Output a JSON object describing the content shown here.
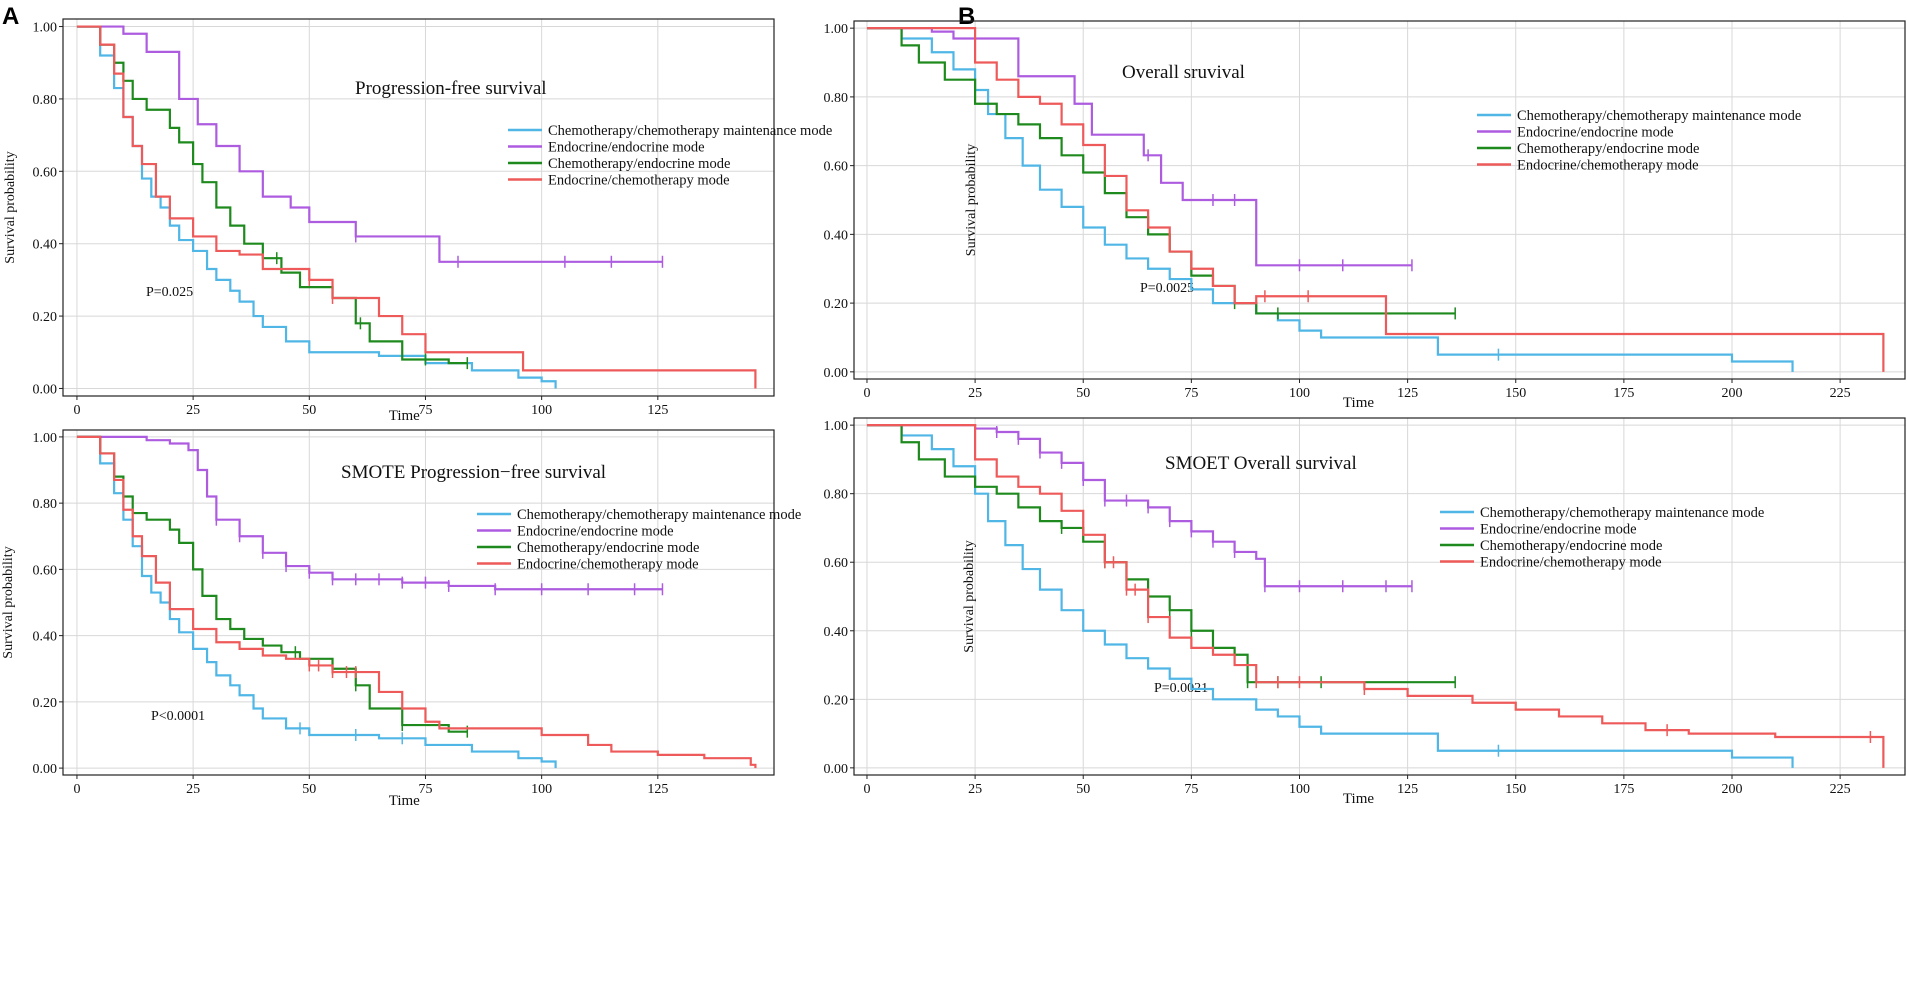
{
  "panel_letters": [
    "A",
    "B"
  ],
  "legend_labels": [
    "Chemotherapy/chemotherapy maintenance mode",
    "Endocrine/endocrine  mode",
    "Chemotherapy/endocrine mode",
    "Endocrine/chemotherapy  mode"
  ],
  "series_colors": [
    "#4fb6e6",
    "#ad5ce0",
    "#1e8a1e",
    "#ee5a5a"
  ],
  "chart_data": [
    {
      "type": "line",
      "title": "Progression-free survival",
      "xlabel": "Time",
      "ylabel": "Survival probability",
      "xlim": [
        -3,
        150
      ],
      "ylim": [
        0,
        1
      ],
      "xticks": [
        0,
        25,
        50,
        75,
        100,
        125
      ],
      "yticks": [
        0.0,
        0.2,
        0.4,
        0.6,
        0.8,
        1.0
      ],
      "ytick_labels": [
        "0.00",
        "0.20",
        "0.40",
        "0.60",
        "0.80",
        "1.00"
      ],
      "annotation": "P=0.025",
      "grid": true,
      "legend_position": "upper-right",
      "series": [
        {
          "name": "Chemotherapy/chemotherapy maintenance mode",
          "x": [
            0,
            5,
            8,
            10,
            12,
            14,
            16,
            18,
            20,
            22,
            25,
            28,
            30,
            33,
            35,
            38,
            40,
            45,
            50,
            55,
            65,
            75,
            85,
            95,
            100,
            103
          ],
          "y": [
            1,
            0.92,
            0.83,
            0.75,
            0.67,
            0.58,
            0.53,
            0.5,
            0.45,
            0.41,
            0.38,
            0.33,
            0.3,
            0.27,
            0.24,
            0.2,
            0.17,
            0.13,
            0.1,
            0.1,
            0.09,
            0.07,
            0.05,
            0.03,
            0.02,
            0
          ]
        },
        {
          "name": "Endocrine/endocrine  mode",
          "x": [
            0,
            10,
            15,
            22,
            26,
            30,
            35,
            40,
            46,
            50,
            60,
            65,
            78,
            90,
            126
          ],
          "y": [
            1,
            0.98,
            0.93,
            0.8,
            0.73,
            0.67,
            0.6,
            0.53,
            0.5,
            0.46,
            0.42,
            0.42,
            0.35,
            0.35,
            0.35
          ],
          "censor_x": [
            60,
            82,
            105,
            115,
            126
          ]
        },
        {
          "name": "Chemotherapy/endocrine mode",
          "x": [
            0,
            5,
            8,
            10,
            12,
            15,
            20,
            22,
            25,
            27,
            30,
            33,
            36,
            40,
            44,
            48,
            55,
            60,
            63,
            70,
            80,
            84
          ],
          "y": [
            1,
            0.95,
            0.9,
            0.85,
            0.8,
            0.77,
            0.72,
            0.68,
            0.62,
            0.57,
            0.5,
            0.45,
            0.4,
            0.36,
            0.32,
            0.28,
            0.25,
            0.18,
            0.13,
            0.08,
            0.07,
            0.07
          ],
          "censor_x": [
            43,
            61,
            75,
            84
          ]
        },
        {
          "name": "Endocrine/chemotherapy  mode",
          "x": [
            0,
            5,
            8,
            10,
            12,
            14,
            17,
            20,
            25,
            30,
            35,
            40,
            45,
            50,
            55,
            65,
            70,
            75,
            78,
            96,
            146
          ],
          "y": [
            1,
            0.95,
            0.87,
            0.75,
            0.67,
            0.62,
            0.53,
            0.47,
            0.42,
            0.38,
            0.37,
            0.33,
            0.33,
            0.3,
            0.25,
            0.2,
            0.15,
            0.1,
            0.1,
            0.05,
            0
          ],
          "censor_x": [
            50,
            55
          ]
        }
      ]
    },
    {
      "type": "line",
      "title": "Overall sruvival",
      "xlabel": "Time",
      "ylabel": "Survival probability",
      "xlim": [
        -3,
        240
      ],
      "ylim": [
        0,
        1
      ],
      "xticks": [
        0,
        25,
        50,
        75,
        100,
        125,
        150,
        175,
        200,
        225
      ],
      "yticks": [
        0.0,
        0.2,
        0.4,
        0.6,
        0.8,
        1.0
      ],
      "ytick_labels": [
        "0.00",
        "0.20",
        "0.40",
        "0.60",
        "0.80",
        "1.00"
      ],
      "annotation": "P=0.0025",
      "grid": true,
      "legend_position": "upper-right",
      "series": [
        {
          "name": "Chemotherapy/chemotherapy maintenance mode",
          "x": [
            0,
            8,
            15,
            20,
            25,
            28,
            32,
            36,
            40,
            45,
            50,
            55,
            60,
            65,
            70,
            75,
            80,
            90,
            95,
            100,
            105,
            120,
            132,
            145,
            200,
            214
          ],
          "y": [
            1,
            0.97,
            0.93,
            0.88,
            0.82,
            0.75,
            0.68,
            0.6,
            0.53,
            0.48,
            0.42,
            0.37,
            0.33,
            0.3,
            0.27,
            0.24,
            0.2,
            0.17,
            0.15,
            0.12,
            0.1,
            0.1,
            0.05,
            0.05,
            0.03,
            0
          ],
          "censor_x": [
            146
          ]
        },
        {
          "name": "Endocrine/endocrine  mode",
          "x": [
            0,
            15,
            20,
            30,
            35,
            43,
            48,
            52,
            60,
            64,
            68,
            73,
            78,
            85,
            90,
            92,
            126
          ],
          "y": [
            1,
            0.99,
            0.97,
            0.97,
            0.86,
            0.86,
            0.78,
            0.69,
            0.69,
            0.63,
            0.55,
            0.5,
            0.5,
            0.5,
            0.31,
            0.31,
            0.31
          ],
          "censor_x": [
            65,
            80,
            85,
            100,
            110,
            126
          ]
        },
        {
          "name": "Chemotherapy/endocrine mode",
          "x": [
            0,
            8,
            12,
            18,
            25,
            30,
            35,
            40,
            45,
            50,
            55,
            60,
            65,
            70,
            75,
            80,
            85,
            90,
            136
          ],
          "y": [
            1,
            0.95,
            0.9,
            0.85,
            0.78,
            0.75,
            0.72,
            0.68,
            0.63,
            0.58,
            0.52,
            0.45,
            0.4,
            0.35,
            0.28,
            0.25,
            0.2,
            0.17,
            0.17
          ],
          "censor_x": [
            85,
            95,
            136
          ]
        },
        {
          "name": "Endocrine/chemotherapy  mode",
          "x": [
            0,
            20,
            25,
            30,
            35,
            40,
            45,
            50,
            55,
            60,
            65,
            70,
            75,
            80,
            85,
            90,
            100,
            110,
            120,
            125,
            130,
            235
          ],
          "y": [
            1,
            1,
            0.9,
            0.85,
            0.8,
            0.78,
            0.72,
            0.66,
            0.57,
            0.47,
            0.42,
            0.35,
            0.3,
            0.25,
            0.2,
            0.22,
            0.22,
            0.22,
            0.11,
            0.11,
            0.11,
            0
          ],
          "censor_x": [
            92,
            102
          ]
        }
      ]
    },
    {
      "type": "line",
      "title": "SMOTE Progression−free survival",
      "xlabel": "Time",
      "ylabel": "Survival probability",
      "xlim": [
        -3,
        150
      ],
      "ylim": [
        0,
        1
      ],
      "xticks": [
        0,
        25,
        50,
        75,
        100,
        125
      ],
      "yticks": [
        0.0,
        0.2,
        0.4,
        0.6,
        0.8,
        1.0
      ],
      "ytick_labels": [
        "0.00",
        "0.20",
        "0.40",
        "0.60",
        "0.80",
        "1.00"
      ],
      "annotation": "P<0.0001",
      "grid": true,
      "legend_position": "upper-right",
      "series": [
        {
          "name": "Chemotherapy/chemotherapy maintenance mode",
          "x": [
            0,
            5,
            8,
            10,
            12,
            14,
            16,
            18,
            20,
            22,
            25,
            28,
            30,
            33,
            35,
            38,
            40,
            45,
            50,
            55,
            65,
            75,
            85,
            95,
            100,
            103
          ],
          "y": [
            1,
            0.92,
            0.83,
            0.75,
            0.67,
            0.58,
            0.53,
            0.5,
            0.45,
            0.41,
            0.36,
            0.32,
            0.28,
            0.25,
            0.22,
            0.18,
            0.15,
            0.12,
            0.1,
            0.1,
            0.09,
            0.07,
            0.05,
            0.03,
            0.02,
            0
          ],
          "censor_x": [
            48,
            60,
            70
          ]
        },
        {
          "name": "Endocrine/endocrine  mode",
          "x": [
            0,
            10,
            15,
            20,
            24,
            26,
            28,
            30,
            35,
            40,
            45,
            50,
            55,
            60,
            70,
            80,
            90,
            126
          ],
          "y": [
            1,
            1,
            0.99,
            0.98,
            0.96,
            0.9,
            0.82,
            0.75,
            0.7,
            0.65,
            0.61,
            0.59,
            0.57,
            0.57,
            0.56,
            0.55,
            0.54,
            0.54
          ],
          "censor_x": [
            30,
            35,
            40,
            45,
            50,
            55,
            60,
            65,
            70,
            75,
            80,
            90,
            100,
            110,
            120,
            126
          ]
        },
        {
          "name": "Chemotherapy/endocrine mode",
          "x": [
            0,
            5,
            8,
            10,
            12,
            15,
            20,
            22,
            25,
            27,
            30,
            33,
            36,
            40,
            44,
            48,
            55,
            60,
            63,
            70,
            80,
            84
          ],
          "y": [
            1,
            0.95,
            0.88,
            0.82,
            0.77,
            0.75,
            0.72,
            0.68,
            0.6,
            0.52,
            0.45,
            0.42,
            0.39,
            0.37,
            0.35,
            0.33,
            0.3,
            0.25,
            0.18,
            0.13,
            0.11,
            0.11
          ],
          "censor_x": [
            47,
            55,
            60,
            70,
            84
          ]
        },
        {
          "name": "Endocrine/chemotherapy  mode",
          "x": [
            0,
            5,
            8,
            10,
            12,
            14,
            17,
            20,
            25,
            30,
            35,
            40,
            45,
            50,
            55,
            65,
            70,
            75,
            78,
            90,
            100,
            110,
            115,
            125,
            135,
            145,
            146
          ],
          "y": [
            1,
            0.95,
            0.87,
            0.78,
            0.7,
            0.64,
            0.56,
            0.48,
            0.42,
            0.38,
            0.36,
            0.34,
            0.33,
            0.31,
            0.29,
            0.23,
            0.18,
            0.14,
            0.12,
            0.12,
            0.1,
            0.07,
            0.05,
            0.04,
            0.03,
            0.01,
            0
          ],
          "censor_x": [
            50,
            52,
            55,
            58,
            60
          ]
        }
      ]
    },
    {
      "type": "line",
      "title": "SMOET Overall survival",
      "xlabel": "Time",
      "ylabel": "Survival probability",
      "xlim": [
        -3,
        240
      ],
      "ylim": [
        0,
        1
      ],
      "xticks": [
        0,
        25,
        50,
        75,
        100,
        125,
        150,
        175,
        200,
        225
      ],
      "yticks": [
        0.0,
        0.2,
        0.4,
        0.6,
        0.8,
        1.0
      ],
      "ytick_labels": [
        "0.00",
        "0.20",
        "0.40",
        "0.60",
        "0.80",
        "1.00"
      ],
      "annotation": "P=0.0021",
      "grid": true,
      "legend_position": "upper-right",
      "series": [
        {
          "name": "Chemotherapy/chemotherapy maintenance mode",
          "x": [
            0,
            8,
            15,
            20,
            25,
            28,
            32,
            36,
            40,
            45,
            50,
            55,
            60,
            65,
            70,
            75,
            80,
            90,
            95,
            100,
            105,
            120,
            132,
            145,
            200,
            214
          ],
          "y": [
            1,
            0.97,
            0.93,
            0.88,
            0.8,
            0.72,
            0.65,
            0.58,
            0.52,
            0.46,
            0.4,
            0.36,
            0.32,
            0.29,
            0.26,
            0.23,
            0.2,
            0.17,
            0.15,
            0.12,
            0.1,
            0.1,
            0.05,
            0.05,
            0.03,
            0
          ],
          "censor_x": [
            146
          ]
        },
        {
          "name": "Endocrine/endocrine  mode",
          "x": [
            0,
            15,
            25,
            30,
            35,
            40,
            45,
            50,
            55,
            60,
            65,
            70,
            75,
            80,
            85,
            90,
            92,
            126
          ],
          "y": [
            1,
            1,
            0.99,
            0.98,
            0.96,
            0.92,
            0.89,
            0.84,
            0.78,
            0.78,
            0.76,
            0.72,
            0.69,
            0.66,
            0.63,
            0.61,
            0.53,
            0.53
          ],
          "censor_x": [
            30,
            35,
            40,
            45,
            50,
            55,
            60,
            65,
            70,
            75,
            80,
            85,
            92,
            100,
            110,
            120,
            126
          ]
        },
        {
          "name": "Chemotherapy/endocrine mode",
          "x": [
            0,
            8,
            12,
            18,
            25,
            30,
            35,
            40,
            45,
            50,
            55,
            60,
            65,
            70,
            75,
            80,
            85,
            88,
            136
          ],
          "y": [
            1,
            0.95,
            0.9,
            0.85,
            0.82,
            0.8,
            0.76,
            0.72,
            0.7,
            0.66,
            0.6,
            0.55,
            0.5,
            0.46,
            0.4,
            0.35,
            0.33,
            0.25,
            0.25
          ],
          "censor_x": [
            45,
            55,
            60,
            65,
            70,
            75,
            80,
            88,
            95,
            105,
            136
          ]
        },
        {
          "name": "Endocrine/chemotherapy  mode",
          "x": [
            0,
            20,
            25,
            30,
            35,
            40,
            45,
            50,
            55,
            60,
            65,
            70,
            75,
            80,
            85,
            90,
            100,
            115,
            125,
            140,
            150,
            160,
            170,
            180,
            190,
            210,
            235
          ],
          "y": [
            1,
            1,
            0.9,
            0.85,
            0.82,
            0.8,
            0.75,
            0.68,
            0.6,
            0.52,
            0.44,
            0.38,
            0.35,
            0.33,
            0.3,
            0.25,
            0.25,
            0.23,
            0.21,
            0.19,
            0.17,
            0.15,
            0.13,
            0.11,
            0.1,
            0.09,
            0
          ],
          "censor_x": [
            55,
            57,
            60,
            62,
            65,
            90,
            95,
            100,
            115,
            185,
            232
          ]
        }
      ]
    }
  ]
}
